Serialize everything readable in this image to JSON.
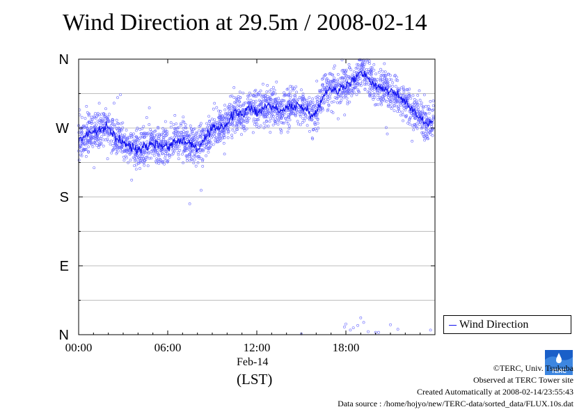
{
  "chart_data": {
    "type": "scatter",
    "title": "Wind Direction at 29.5m / 2008-02-14",
    "xlabel_date": "Feb-14",
    "xlabel_unit": "(LST)",
    "x_ticks": [
      "00:00",
      "06:00",
      "12:00",
      "18:00"
    ],
    "y_ticks": [
      "N",
      "W",
      "S",
      "E",
      "N"
    ],
    "y_tick_values": [
      360,
      270,
      180,
      90,
      0
    ],
    "xlim_hours": [
      0,
      24
    ],
    "ylim_degrees": [
      0,
      360
    ],
    "grid": true,
    "legend_position": "right",
    "series": [
      {
        "name": "Wind Direction",
        "line_color": "#1010ee",
        "point_color": "#6666ff",
        "mean_points": [
          [
            0.0,
            252
          ],
          [
            0.5,
            262
          ],
          [
            1.0,
            265
          ],
          [
            1.5,
            268
          ],
          [
            2.0,
            270
          ],
          [
            2.5,
            258
          ],
          [
            3.0,
            250
          ],
          [
            3.5,
            245
          ],
          [
            4.0,
            243
          ],
          [
            4.5,
            248
          ],
          [
            5.0,
            250
          ],
          [
            5.5,
            248
          ],
          [
            6.0,
            246
          ],
          [
            6.5,
            252
          ],
          [
            7.0,
            255
          ],
          [
            7.5,
            250
          ],
          [
            8.0,
            243
          ],
          [
            8.5,
            255
          ],
          [
            9.0,
            268
          ],
          [
            9.5,
            272
          ],
          [
            10.0,
            275
          ],
          [
            10.5,
            290
          ],
          [
            11.0,
            288
          ],
          [
            11.5,
            295
          ],
          [
            12.0,
            290
          ],
          [
            12.5,
            298
          ],
          [
            13.0,
            300
          ],
          [
            13.5,
            292
          ],
          [
            14.0,
            295
          ],
          [
            14.5,
            300
          ],
          [
            15.0,
            298
          ],
          [
            15.5,
            292
          ],
          [
            16.0,
            288
          ],
          [
            16.5,
            315
          ],
          [
            17.0,
            322
          ],
          [
            17.5,
            320
          ],
          [
            18.0,
            325
          ],
          [
            18.5,
            332
          ],
          [
            19.0,
            345
          ],
          [
            19.5,
            335
          ],
          [
            20.0,
            325
          ],
          [
            20.5,
            322
          ],
          [
            21.0,
            318
          ],
          [
            21.5,
            312
          ],
          [
            22.0,
            305
          ],
          [
            22.5,
            295
          ],
          [
            23.0,
            283
          ],
          [
            23.5,
            275
          ],
          [
            23.9,
            280
          ]
        ],
        "north_wrap_points": [
          [
            17.9,
            10
          ],
          [
            18.0,
            14
          ],
          [
            18.3,
            6
          ],
          [
            18.5,
            9
          ],
          [
            18.8,
            12
          ],
          [
            19.0,
            22
          ],
          [
            19.2,
            16
          ],
          [
            19.5,
            4
          ],
          [
            20.0,
            3
          ],
          [
            20.2,
            3
          ],
          [
            21.0,
            13
          ],
          [
            21.5,
            7
          ],
          [
            23.7,
            6
          ],
          [
            15.0,
            1
          ]
        ]
      }
    ]
  },
  "footer": {
    "copyright": "©TERC, Univ. Tsukuba",
    "site": "Observed at TERC Tower site",
    "created": "Created Automatically at 2008-02-14/23:55:43",
    "source": "Data source : /home/hojyo/new/TERC-data/sorted_data/FLUX.10s.dat"
  },
  "logo": {
    "text": "TERC",
    "color": "#1a5fc8"
  }
}
